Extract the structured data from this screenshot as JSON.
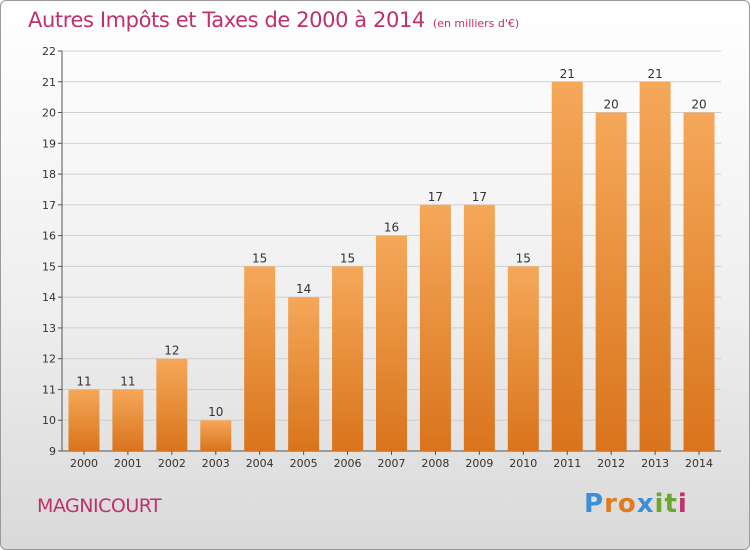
{
  "header": {
    "title": "Autres Impôts et Taxes de 2000 à 2014",
    "unit": "(en milliers d'€)"
  },
  "footer": {
    "commune": "MAGNICOURT",
    "logo": [
      "P",
      "r",
      "o",
      "x",
      "i",
      "t",
      "i"
    ],
    "logo_colors": [
      "#3a8fd6",
      "#e07a1e",
      "#e07a1e",
      "#3a8fd6",
      "#6aa72f",
      "#6aa72f",
      "#c0306a"
    ]
  },
  "colors": {
    "bar_top": "#f5a859",
    "bar_bottom": "#d9741c",
    "accent": "#c0306a",
    "grid": "#cfcfcf"
  },
  "chart_data": {
    "type": "bar",
    "title": "Autres Impôts et Taxes de 2000 à 2014",
    "subtitle": "(en milliers d'€)",
    "categories": [
      "2000",
      "2001",
      "2002",
      "2003",
      "2004",
      "2005",
      "2006",
      "2007",
      "2008",
      "2009",
      "2010",
      "2011",
      "2012",
      "2013",
      "2014"
    ],
    "values": [
      11,
      11,
      12,
      10,
      15,
      14,
      15,
      16,
      17,
      17,
      15,
      21,
      20,
      21,
      20
    ],
    "value_labels": [
      "11",
      "11",
      "12",
      "10",
      "15",
      "14",
      "15",
      "16",
      "17",
      "17",
      "15",
      "21",
      "20",
      "21",
      "20"
    ],
    "yticks": [
      "9",
      "10",
      "11",
      "12",
      "13",
      "14",
      "15",
      "16",
      "17",
      "18",
      "19",
      "20",
      "21",
      "22"
    ],
    "ylim": [
      9,
      22
    ],
    "grid": true,
    "legend": "none"
  }
}
